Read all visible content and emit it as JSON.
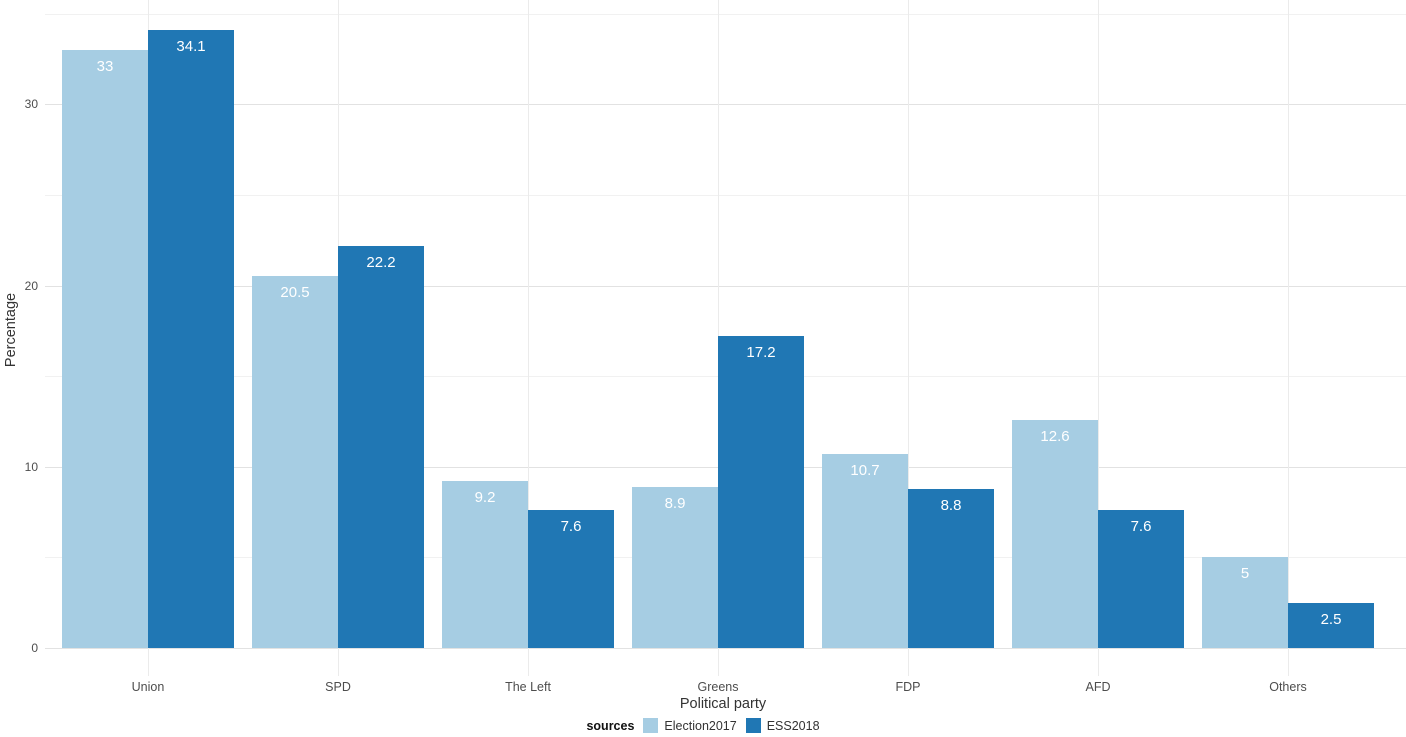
{
  "chart_data": {
    "type": "bar",
    "title": "",
    "xlabel": "Political party",
    "ylabel": "Percentage",
    "categories": [
      "Union",
      "SPD",
      "The Left",
      "Greens",
      "FDP",
      "AFD",
      "Others"
    ],
    "series": [
      {
        "name": "Election2017",
        "color": "#a6cde3",
        "values": [
          33,
          20.5,
          9.2,
          8.9,
          10.7,
          12.6,
          5
        ]
      },
      {
        "name": "ESS2018",
        "color": "#2077b4",
        "values": [
          34.1,
          22.2,
          7.6,
          17.2,
          8.8,
          7.6,
          2.5
        ]
      }
    ],
    "y_ticks": [
      0,
      10,
      20,
      30
    ],
    "y_minor_ticks": [
      5,
      15,
      25,
      35
    ],
    "ylim": [
      0,
      35.8
    ],
    "grid": true,
    "legend_title": "sources",
    "legend_position": "bottom",
    "bar_label_color": "#ffffff"
  }
}
